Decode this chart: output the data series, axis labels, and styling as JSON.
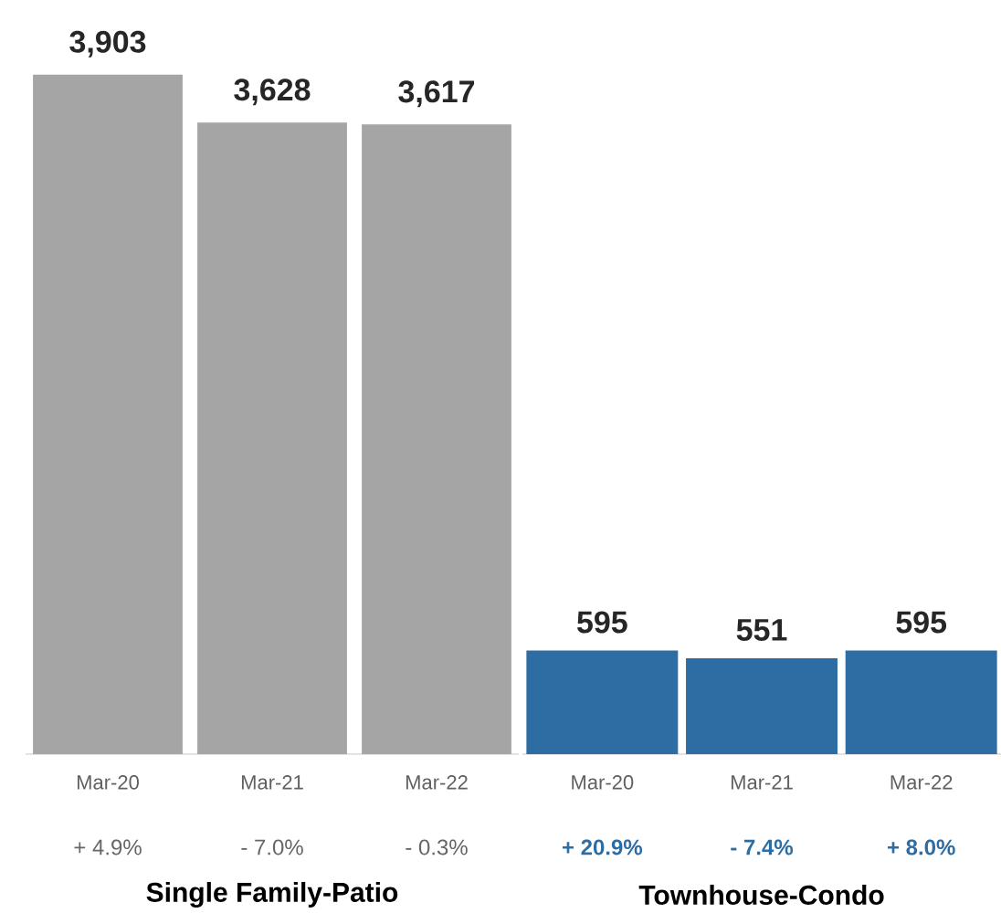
{
  "chart_data": [
    {
      "type": "bar",
      "xlabel": "Single Family-Patio",
      "categories": [
        "Mar-20",
        "Mar-21",
        "Mar-22"
      ],
      "values": [
        3903,
        3628,
        3617
      ],
      "color": "#a5a5a5",
      "value_labels": [
        "3,903",
        "3,628",
        "3,617"
      ],
      "tick_labels": "x",
      "annotations": [
        "+ 4.9%",
        "- 7.0%",
        "- 0.3%"
      ]
    },
    {
      "type": "bar",
      "xlabel": "Townhouse-Condo",
      "categories": [
        "Mar-20",
        "Mar-21",
        "Mar-22"
      ],
      "values": [
        595,
        551,
        595
      ],
      "color": "#2e6da4",
      "value_labels": [
        "595",
        "551",
        "595"
      ],
      "tick_labels": "x",
      "annotations": [
        "+ 20.9%",
        "- 7.4%",
        "+ 8.0%"
      ]
    }
  ]
}
